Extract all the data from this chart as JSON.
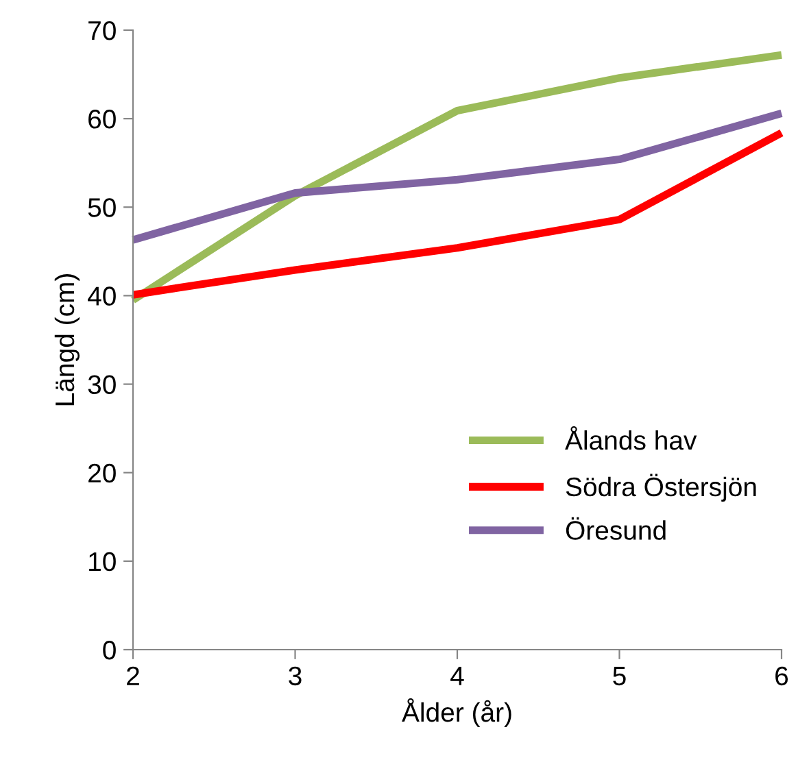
{
  "chart_data": {
    "type": "line",
    "xlabel": "Ålder (år)",
    "ylabel": "Längd (cm)",
    "x": [
      2,
      3,
      4,
      5,
      6
    ],
    "series": [
      {
        "name": "Ålands hav",
        "color": "#9bbb59",
        "values": [
          39.5,
          51.3,
          60.9,
          64.6,
          67.2
        ]
      },
      {
        "name": "Södra Östersjön",
        "color": "#ff0000",
        "values": [
          40.1,
          42.9,
          45.4,
          48.6,
          58.4
        ]
      },
      {
        "name": "Öresund",
        "color": "#8064a2",
        "values": [
          46.3,
          51.6,
          53.1,
          55.4,
          60.6
        ]
      }
    ],
    "xlim": [
      2,
      6
    ],
    "xticks": [
      2,
      3,
      4,
      5,
      6
    ],
    "ylim": [
      0,
      70
    ],
    "yticks": [
      0,
      10,
      20,
      30,
      40,
      50,
      60,
      70
    ],
    "grid": false,
    "legend": "bottom right",
    "marker": "none",
    "line_style": "solid"
  }
}
